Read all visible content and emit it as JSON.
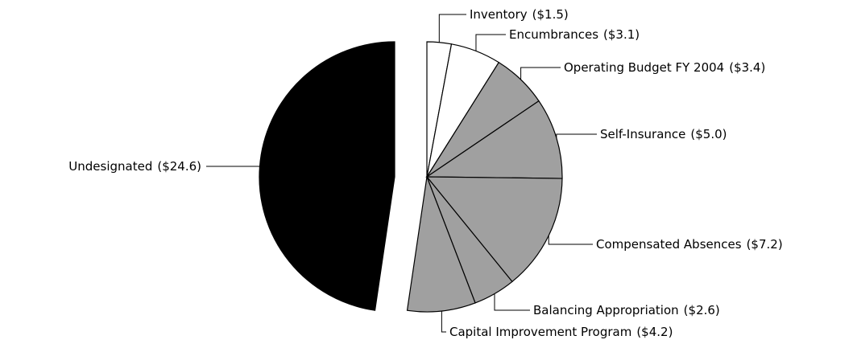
{
  "chart_data": {
    "type": "pie",
    "categories": [
      "Inventory",
      "Encumbrances",
      "Operating Budget FY 2004",
      "Self-Insurance",
      "Compensated Absences",
      "Balancing Appropriation",
      "Capital Improvement Program",
      "Undesignated"
    ],
    "values": [
      1.5,
      3.1,
      3.4,
      5.0,
      7.2,
      2.6,
      4.2,
      24.6
    ],
    "value_labels": [
      "($1.5)",
      "($3.1)",
      "($3.4)",
      "($5.0)",
      "($7.2)",
      "($2.6)",
      "($4.2)",
      "($24.6)"
    ],
    "colors": [
      "#ffffff",
      "#ffffff",
      "#a0a0a0",
      "#a0a0a0",
      "#a0a0a0",
      "#a0a0a0",
      "#a0a0a0",
      "#000000"
    ]
  }
}
